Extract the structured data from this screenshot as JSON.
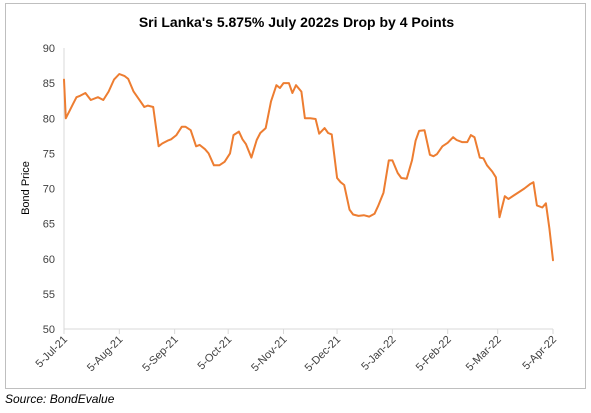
{
  "source": "Source: BondEvalue",
  "chart_data": {
    "type": "line",
    "title": "Sri Lanka's 5.875% July 2022s Drop by 4 Points",
    "xlabel": "",
    "ylabel": "Bond Price",
    "ylim": [
      50,
      90
    ],
    "yticks": [
      50,
      55,
      60,
      65,
      70,
      75,
      80,
      85,
      90
    ],
    "xlim": [
      "2021-07-05",
      "2022-04-05"
    ],
    "xticks": [
      "5-Jul-21",
      "5-Aug-21",
      "5-Sep-21",
      "5-Oct-21",
      "5-Nov-21",
      "5-Dec-21",
      "5-Jan-22",
      "5-Feb-22",
      "5-Mar-22",
      "5-Apr-22"
    ],
    "grid": false,
    "legend": "none",
    "line_color": "#ED7D31",
    "series": [
      {
        "x": [
          "2021-07-05",
          "2021-07-06",
          "2021-07-07",
          "2021-07-08",
          "2021-07-10",
          "2021-07-12",
          "2021-07-14",
          "2021-07-17",
          "2021-07-20",
          "2021-07-24",
          "2021-07-27",
          "2021-07-30",
          "2021-08-02",
          "2021-08-05",
          "2021-08-08",
          "2021-08-10",
          "2021-08-13",
          "2021-08-16",
          "2021-08-19",
          "2021-08-21",
          "2021-08-24",
          "2021-08-27",
          "2021-08-29",
          "2021-09-01",
          "2021-09-03",
          "2021-09-06",
          "2021-09-09",
          "2021-09-11",
          "2021-09-14",
          "2021-09-17",
          "2021-09-19",
          "2021-09-22",
          "2021-09-24",
          "2021-09-27",
          "2021-09-30",
          "2021-10-03",
          "2021-10-06",
          "2021-10-08",
          "2021-10-11",
          "2021-10-13",
          "2021-10-15",
          "2021-10-18",
          "2021-10-21",
          "2021-10-23",
          "2021-10-26",
          "2021-10-29",
          "2021-11-01",
          "2021-11-03",
          "2021-11-05",
          "2021-11-08",
          "2021-11-10",
          "2021-11-12",
          "2021-11-15",
          "2021-11-17",
          "2021-11-20",
          "2021-11-23",
          "2021-11-25",
          "2021-11-28",
          "2021-11-30",
          "2021-12-02",
          "2021-12-05",
          "2021-12-07",
          "2021-12-09",
          "2021-12-12",
          "2021-12-14",
          "2021-12-17",
          "2021-12-20",
          "2021-12-23",
          "2021-12-26",
          "2021-12-28",
          "2021-12-31",
          "2022-01-03",
          "2022-01-05",
          "2022-01-08",
          "2022-01-10",
          "2022-01-13",
          "2022-01-16",
          "2022-01-18",
          "2022-01-20",
          "2022-01-23",
          "2022-01-26",
          "2022-01-28",
          "2022-01-30",
          "2022-02-02",
          "2022-02-05",
          "2022-02-08",
          "2022-02-10",
          "2022-02-13",
          "2022-02-16",
          "2022-02-18",
          "2022-02-20",
          "2022-02-23",
          "2022-02-25",
          "2022-02-27",
          "2022-03-02",
          "2022-03-04",
          "2022-03-06",
          "2022-03-09",
          "2022-03-11",
          "2022-03-14",
          "2022-03-17",
          "2022-03-20",
          "2022-03-23",
          "2022-03-25",
          "2022-03-27",
          "2022-03-30",
          "2022-04-01",
          "2022-04-03",
          "2022-04-05"
        ],
        "values": [
          85.5,
          80.0,
          80.5,
          81.0,
          82.0,
          83.0,
          83.2,
          83.6,
          82.6,
          83.0,
          82.6,
          83.8,
          85.5,
          86.3,
          86.0,
          85.6,
          83.8,
          82.7,
          81.6,
          81.8,
          81.6,
          76.0,
          76.4,
          76.8,
          77.0,
          77.6,
          78.8,
          78.8,
          78.3,
          76.0,
          76.2,
          75.6,
          75.0,
          73.3,
          73.3,
          73.8,
          75.0,
          77.6,
          78.1,
          77.0,
          76.3,
          74.4,
          76.9,
          77.9,
          78.6,
          82.4,
          84.7,
          84.3,
          85.0,
          85.0,
          83.6,
          84.7,
          83.8,
          80.0,
          80.0,
          79.9,
          77.8,
          78.6,
          77.9,
          77.7,
          71.5,
          70.9,
          70.5,
          67.0,
          66.3,
          66.1,
          66.2,
          66.0,
          66.4,
          67.5,
          69.4,
          74.0,
          74.0,
          72.2,
          71.5,
          71.4,
          74.0,
          76.8,
          78.2,
          78.3,
          74.8,
          74.6,
          74.9,
          76.0,
          76.5,
          77.3,
          76.9,
          76.6,
          76.6,
          77.6,
          77.3,
          74.4,
          74.3,
          73.3,
          72.4,
          71.6,
          65.9,
          68.9,
          68.5,
          69.0,
          69.5,
          70.0,
          70.6,
          70.9,
          67.6,
          67.3,
          67.9,
          64.3,
          59.8
        ]
      }
    ]
  }
}
